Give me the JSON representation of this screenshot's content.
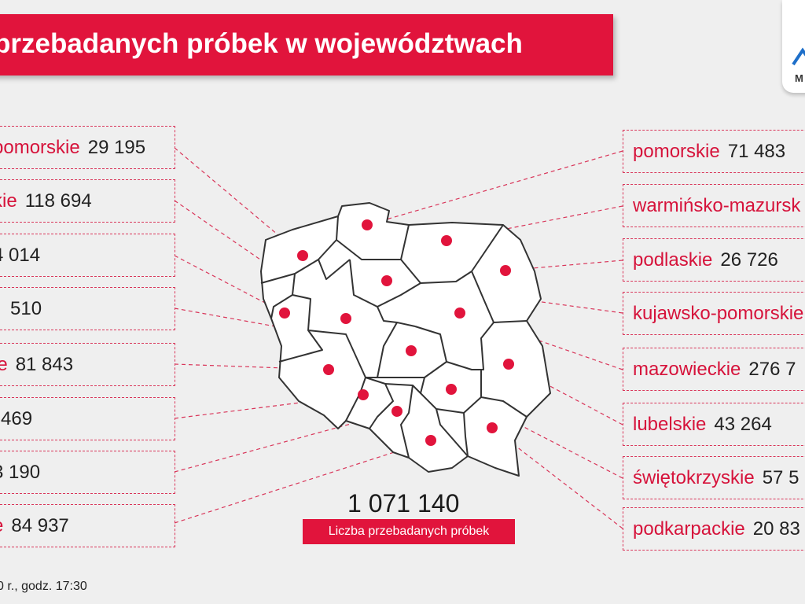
{
  "header": {
    "title": "przebadanych próbek w województwach"
  },
  "logo": {
    "text": "M"
  },
  "left_items": [
    {
      "name": "pomorskie",
      "value": "29 195"
    },
    {
      "name": "kie",
      "value": "118 694"
    },
    {
      "name": "",
      "value": "4 014"
    },
    {
      "name": "",
      "value": "510"
    },
    {
      "name": "ie",
      "value": "81 843"
    },
    {
      "name": "",
      "value": "469"
    },
    {
      "name": "",
      "value": "3 190"
    },
    {
      "name": "e",
      "value": "84 937"
    }
  ],
  "right_items": [
    {
      "name": "pomorskie",
      "value": "71 483"
    },
    {
      "name": "warmińsko-mazursk",
      "value": ""
    },
    {
      "name": "podlaskie",
      "value": "26 726"
    },
    {
      "name": "kujawsko-pomorskie",
      "value": ""
    },
    {
      "name": "mazowieckie",
      "value": "276 7"
    },
    {
      "name": "lubelskie",
      "value": "43 264"
    },
    {
      "name": "świętokrzyskie",
      "value": "57 5"
    },
    {
      "name": "podkarpackie",
      "value": "20 83"
    }
  ],
  "total": {
    "value": "1 071 140",
    "label": "Liczba przebadanych próbek"
  },
  "footer": {
    "text": "0 r., godz. 17:30"
  },
  "colors": {
    "accent": "#e1143c",
    "background": "#efefef",
    "dashed": "#d9365a"
  }
}
